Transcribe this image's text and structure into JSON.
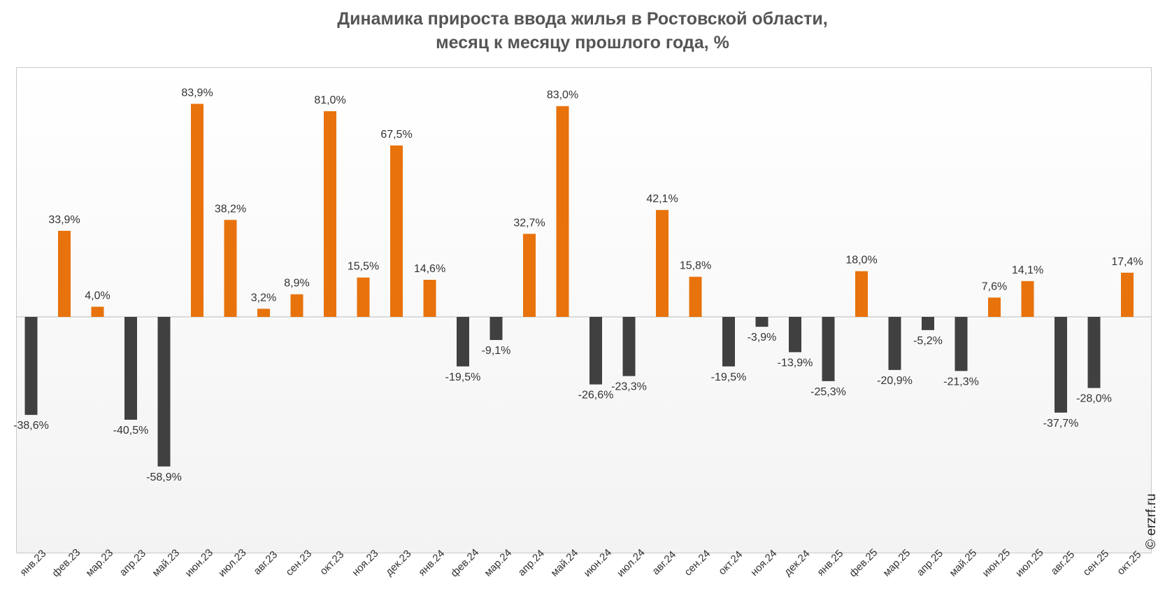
{
  "title": {
    "line1": "Динамика прироста ввода жилья в Ростовской области,",
    "line2": "месяц к месяцу прошлого года, %"
  },
  "watermark": "© erzrf.ru",
  "colors": {
    "positive": "#e8720c",
    "negative": "#404040",
    "title": "#555555",
    "label": "#333333"
  },
  "chart_data": {
    "type": "bar",
    "title": "Динамика прироста ввода жилья в Ростовской области, месяц к месяцу прошлого года, %",
    "xlabel": "",
    "ylabel": "",
    "ylim": [
      -79,
      100
    ],
    "grid": false,
    "legend": "none",
    "categories": [
      "янв.23",
      "фев.23",
      "мар.23",
      "апр.23",
      "май.23",
      "июн.23",
      "июл.23",
      "авг.23",
      "сен.23",
      "окт.23",
      "ноя.23",
      "дек.23",
      "янв.24",
      "фев.24",
      "мар.24",
      "апр.24",
      "май.24",
      "июн.24",
      "июл.24",
      "авг.24",
      "сен.24",
      "окт.24",
      "ноя.24",
      "дек.24",
      "янв.25",
      "фев.25",
      "мар.25",
      "апр.25",
      "май.25",
      "июн.25",
      "июл.25",
      "авг.25",
      "сен.25",
      "окт.25"
    ],
    "values": [
      -38.6,
      33.9,
      4.0,
      -40.5,
      -58.9,
      83.9,
      38.2,
      3.2,
      8.9,
      81.0,
      15.5,
      67.5,
      14.6,
      -19.5,
      -9.1,
      32.7,
      83.0,
      -26.6,
      -23.3,
      42.1,
      15.8,
      -19.5,
      -3.9,
      -13.9,
      -25.3,
      18.0,
      -20.9,
      -5.2,
      -21.3,
      7.6,
      14.1,
      -37.7,
      -28.0,
      17.4
    ],
    "value_labels": [
      "-38,6%",
      "33,9%",
      "4,0%",
      "-40,5%",
      "-58,9%",
      "83,9%",
      "38,2%",
      "3,2%",
      "8,9%",
      "81,0%",
      "15,5%",
      "67,5%",
      "14,6%",
      "-19,5%",
      "-9,1%",
      "32,7%",
      "83,0%",
      "-26,6%",
      "-23,3%",
      "42,1%",
      "15,8%",
      "-19,5%",
      "-3,9%",
      "-13,9%",
      "-25,3%",
      "18,0%",
      "-20,9%",
      "-5,2%",
      "-21,3%",
      "7,6%",
      "14,1%",
      "-37,7%",
      "-28,0%",
      "17,4%"
    ]
  }
}
